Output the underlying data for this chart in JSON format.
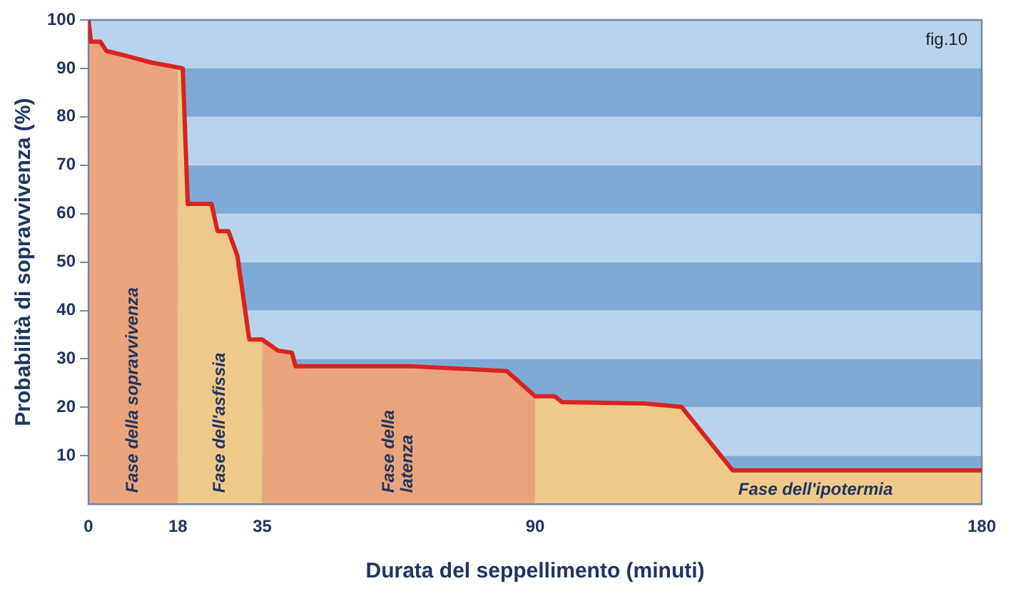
{
  "chart_data": {
    "type": "line",
    "xlabel": "Durata del seppellimento (minuti)",
    "ylabel": "Probabilità di sopravvivenza (%)",
    "x": [
      0,
      0.5,
      2.4,
      3.6,
      6.8,
      12.7,
      19,
      20,
      24.8,
      26,
      28.2,
      30,
      32.4,
      35,
      38.2,
      41,
      41.7,
      64.8,
      84.3,
      90,
      93.9,
      95.4,
      112.1,
      119.5,
      129.8,
      180
    ],
    "series": [
      {
        "color": "#d8231f",
        "values": [
          100,
          95.5,
          95.5,
          93.6,
          92.8,
          91.2,
          90,
          62,
          62,
          56.4,
          56.4,
          51.3,
          34,
          34,
          31.7,
          31.3,
          28.5,
          28.5,
          27.5,
          22.3,
          22.3,
          21.1,
          20.8,
          20.1,
          7,
          7
        ]
      }
    ],
    "xlim": [
      0,
      180
    ],
    "xticks": [
      0,
      18,
      35,
      90,
      180
    ],
    "ylim": [
      0,
      100
    ],
    "yticks": [
      10,
      20,
      30,
      40,
      50,
      60,
      70,
      80,
      90,
      100
    ],
    "bands": [
      {
        "axis": "y",
        "from": 0,
        "to": 10,
        "color": "#7eaad8"
      },
      {
        "axis": "y",
        "from": 10,
        "to": 20,
        "color": "#b9d3ec"
      },
      {
        "axis": "y",
        "from": 20,
        "to": 30,
        "color": "#7eaad8"
      },
      {
        "axis": "y",
        "from": 30,
        "to": 40,
        "color": "#b9d3ec"
      },
      {
        "axis": "y",
        "from": 40,
        "to": 50,
        "color": "#7eaad8"
      },
      {
        "axis": "y",
        "from": 50,
        "to": 60,
        "color": "#b9d3ec"
      },
      {
        "axis": "y",
        "from": 60,
        "to": 70,
        "color": "#7eaad8"
      },
      {
        "axis": "y",
        "from": 70,
        "to": 80,
        "color": "#b9d3ec"
      },
      {
        "axis": "y",
        "from": 80,
        "to": 90,
        "color": "#7eaad8"
      },
      {
        "axis": "y",
        "from": 90,
        "to": 100,
        "color": "#b9d3ec"
      },
      {
        "axis": "x",
        "from": 0,
        "to": 18,
        "label": "Fase della sopravvivenza",
        "color": "#e9a47c"
      },
      {
        "axis": "x",
        "from": 18,
        "to": 35,
        "label": "Fase dell'asfissia",
        "color": "#efc98a"
      },
      {
        "axis": "x",
        "from": 35,
        "to": 90,
        "label": "Fase della latenza",
        "color": "#e9a47c"
      },
      {
        "axis": "x",
        "from": 90,
        "to": 180,
        "label": "Fase dell'ipotermia",
        "color": "#efc98a"
      }
    ],
    "annotations": [
      "fig.10"
    ]
  }
}
